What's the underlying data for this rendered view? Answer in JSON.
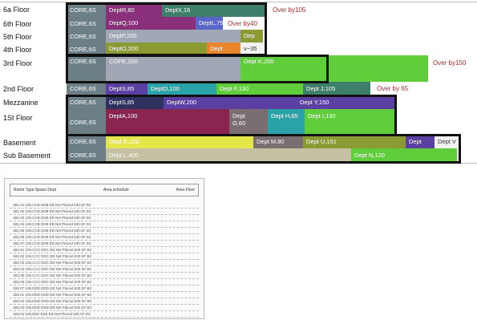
{
  "floors": [
    {
      "id": "6a",
      "label": "6a Floor",
      "core": "CORE,6S"
    },
    {
      "id": "6",
      "label": "6th Floor",
      "core": "CORE,6S"
    },
    {
      "id": "5",
      "label": "5th Floor",
      "core": "CORE,6S"
    },
    {
      "id": "4",
      "label": "4th Floor",
      "core": "CORE,6S"
    },
    {
      "id": "3",
      "label": "3rd Floor",
      "core": "CORE,6S"
    },
    {
      "id": "2",
      "label": "2nd Floor",
      "core": "CORE,6S"
    },
    {
      "id": "mz",
      "label": "Mezzanine",
      "core": "CORE,6S"
    },
    {
      "id": "1",
      "label": "1St Floor",
      "core": "CORE,6S"
    },
    {
      "id": "b",
      "label": "Basement",
      "core": "CORE,6S"
    },
    {
      "id": "sb",
      "label": "Sub Basement",
      "core": "CORE,6S"
    }
  ],
  "blocks": {
    "f6a_a": "DeptR,80",
    "f6a_b": "DeptX,16",
    "f6_a": "DeptQ,100",
    "f6_b": "DeptL,75",
    "f5_a": "DeptP,200",
    "f5_b": "Dep",
    "f4_a": "DeptO,200",
    "f4_b": "Dept",
    "f4_c": "v~35",
    "f3_a": "COPE,200",
    "f3_b": "Dept K,200",
    "f2_a": "DeptS,85",
    "f2_b": "DeptD,100",
    "f2_c": "Dept F,130",
    "f2_d": "Dept J,105",
    "fmz_a": "DeptS,85",
    "fmz_b": "DeptW,200",
    "fmz_c": "Dept Y,150",
    "f1_a": "DeptA,100",
    "f1_b1": "Dept",
    "f1_b2": "G,60",
    "f1_c": "Dept H,65",
    "f1_d": "Dept I,130",
    "fb_a": "Dept E,220",
    "fb_b": "Dept M,80",
    "fb_c": "Dept U,151",
    "fb_d": "Dept",
    "fb_e": "Dept V",
    "fsb_a": "Dept L,400",
    "fsb_b": "Dept N,120"
  },
  "notes": {
    "f6a": "Over by105",
    "f6": "Over by40",
    "f3": "Over by150",
    "f2": "Over by 65"
  },
  "document": {
    "header_left": "Room   Type   Space   Dept",
    "header_mid": "Area schedule",
    "header_right": "Area   Floor",
    "rows": [
      "1B1.01   106.CCB   DDB   EB   Net Placed   630.SF   B1",
      "1B1.02   106.CCB   DDB   EB   Net Placed   630.SF   B1",
      "1B1.03   106.CCB   DDB   EB   Net Placed   630.SF   B1",
      "1B1.04   106.CCB   DDB   EB   Net Placed   630.SF   B1",
      "1B1.05   106.CCB   DDB   EB   Net Placed   630.SF   B1",
      "1B1.06   106.CCB   DDB   EB   Net Placed   630.SF   B1",
      "1B1.07   106.CCB   DDB   EB   Net Placed   630.SF   B1",
      "1B2.01   106.CCC   DDC   EB   Net Placed   630.SF   B2",
      "1B2.02   106.CCC   DDC   EB   Net Placed   630.SF   B2",
      "1B2.03   106.CCC   DDC   EB   Net Placed   630.SF   B2",
      "1B2.04   106.CCC   DDC   EB   Net Placed   630.SF   B2",
      "1B2.05   106.CCC   DDC   EB   Net Placed   630.SF   B2",
      "1B2.06   106.CCC   DDC   EB   Net Placed   630.SF   B2",
      "1B2.07   106.DDD   DDD   EB   Net Placed   630.SF   B2",
      "1B3.01   106.DDD   DDD   EB   Net Placed   630.SF   B3",
      "1B3.02   106.DDD   DDD   EB   Net Placed   630.SF   B3",
      "1B3.03   106.DDD   DDD   EB   Net Placed   630.SF   B3",
      "1B3.04   106.EEE   EEE   EB   Net Placed   630.SF   B3"
    ]
  },
  "colors": {
    "core": "#6d7f86",
    "purple": "#8a2f7a",
    "teal": "#3e7f6c",
    "blue": "#5a66c8",
    "slate": "#a0a8b6",
    "olive": "#8c9a33",
    "orange": "#e9852a",
    "green": "#5fce3a",
    "navy": "#2f3260",
    "violet": "#5b3fa3",
    "cyan": "#2aa3a8",
    "maroon": "#8a2550",
    "gray": "#7a6f70",
    "yellow": "#e4e64a",
    "khaki": "#c4c0a2"
  }
}
